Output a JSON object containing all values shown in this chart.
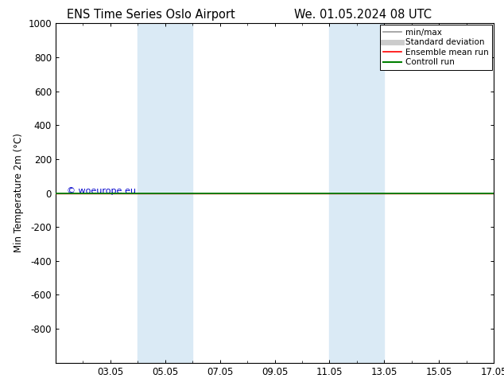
{
  "title_left": "ENS Time Series Oslo Airport",
  "title_right": "We. 01.05.2024 08 UTC",
  "ylabel": "Min Temperature 2m (°C)",
  "watermark": "© woeurope.eu",
  "xtick_labels": [
    "03.05",
    "05.05",
    "07.05",
    "09.05",
    "11.05",
    "13.05",
    "15.05",
    "17.05"
  ],
  "xtick_positions": [
    2,
    4,
    6,
    8,
    10,
    12,
    14,
    16
  ],
  "xlim": [
    0,
    16
  ],
  "ylim_top": -1000,
  "ylim_bottom": 1000,
  "ytick_positions": [
    -800,
    -600,
    -400,
    -200,
    0,
    200,
    400,
    600,
    800,
    1000
  ],
  "ytick_labels": [
    "-800",
    "-600",
    "-400",
    "-200",
    "0",
    "200",
    "400",
    "600",
    "800",
    "1000"
  ],
  "shaded_bands": [
    {
      "xstart": 3.0,
      "xend": 5.0
    },
    {
      "xstart": 10.0,
      "xend": 12.0
    }
  ],
  "band_color": "#daeaf5",
  "horizontal_line_y": 0,
  "line_color_green": "#008000",
  "line_color_red": "#FF0000",
  "legend_entries": [
    {
      "label": "min/max",
      "color": "#999999",
      "lw": 1.2
    },
    {
      "label": "Standard deviation",
      "color": "#cccccc",
      "lw": 5
    },
    {
      "label": "Ensemble mean run",
      "color": "#FF0000",
      "lw": 1.2
    },
    {
      "label": "Controll run",
      "color": "#008000",
      "lw": 1.5
    }
  ],
  "background_color": "#ffffff",
  "title_fontsize": 10.5,
  "axis_fontsize": 8.5,
  "watermark_color": "#0000CC",
  "watermark_fontsize": 8
}
